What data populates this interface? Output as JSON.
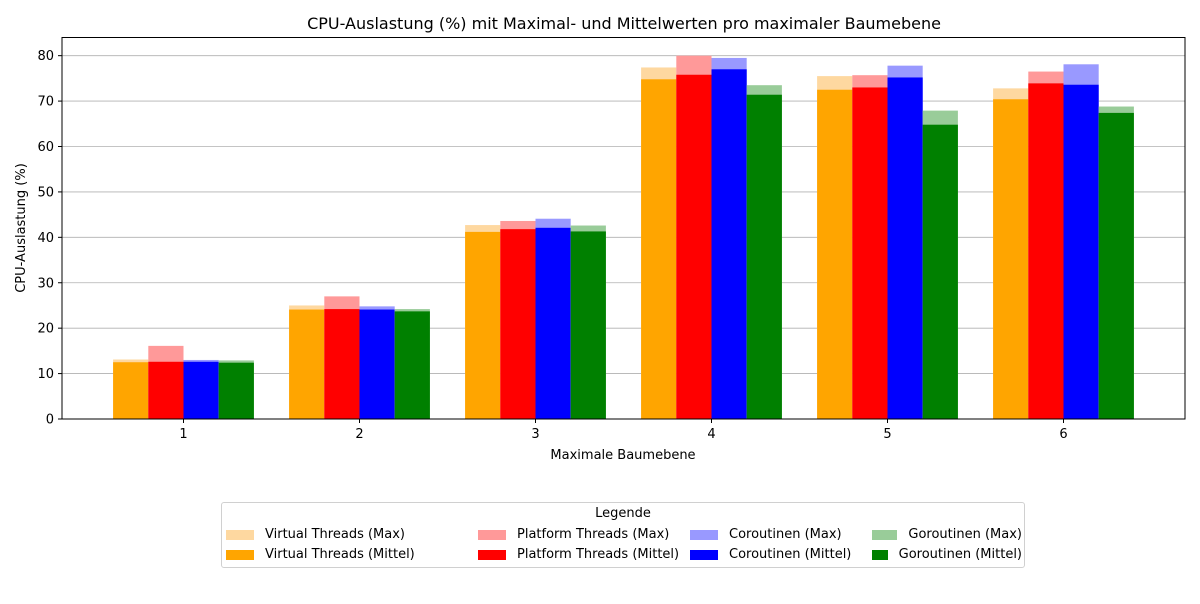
{
  "chart_data": {
    "type": "bar",
    "title": "CPU-Auslastung (%) mit Maximal- und Mittelwerten pro maximaler Baumebene",
    "xlabel": "Maximale Baumebene",
    "ylabel": "CPU-Auslastung (%)",
    "categories": [
      "1",
      "2",
      "3",
      "4",
      "5",
      "6"
    ],
    "ylim": [
      0,
      84
    ],
    "yticks": [
      0,
      10,
      20,
      30,
      40,
      50,
      60,
      70,
      80
    ],
    "grid": "y",
    "legend": {
      "title": "Legende",
      "placement": "bottom-center",
      "columns": 4
    },
    "series": [
      {
        "name": "Virtual Threads (Max)",
        "role": "max",
        "color": "#fed8a0",
        "values": [
          13.1,
          25.0,
          42.7,
          77.4,
          75.5,
          72.8
        ]
      },
      {
        "name": "Virtual Threads (Mittel)",
        "role": "mean",
        "color": "#ffa500",
        "values": [
          12.5,
          24.1,
          41.2,
          74.8,
          72.5,
          70.4
        ]
      },
      {
        "name": "Platform Threads (Max)",
        "role": "max",
        "color": "#ff9999",
        "values": [
          16.1,
          27.0,
          43.6,
          80.0,
          75.7,
          76.5
        ]
      },
      {
        "name": "Platform Threads (Mittel)",
        "role": "mean",
        "color": "#ff0000",
        "values": [
          12.6,
          24.2,
          41.8,
          75.8,
          73.0,
          73.9
        ]
      },
      {
        "name": "Coroutinen (Max)",
        "role": "max",
        "color": "#9999ff",
        "values": [
          13.0,
          24.8,
          44.1,
          79.5,
          77.8,
          78.1
        ]
      },
      {
        "name": "Coroutinen (Mittel)",
        "role": "mean",
        "color": "#0000ff",
        "values": [
          12.6,
          24.1,
          42.1,
          77.0,
          75.2,
          73.6
        ]
      },
      {
        "name": "Goroutinen (Max)",
        "role": "max",
        "color": "#99cc99",
        "values": [
          12.9,
          24.2,
          42.6,
          73.5,
          67.9,
          68.8
        ]
      },
      {
        "name": "Goroutinen (Mittel)",
        "role": "mean",
        "color": "#008000",
        "values": [
          12.4,
          23.7,
          41.3,
          71.4,
          64.8,
          67.4
        ]
      }
    ]
  }
}
